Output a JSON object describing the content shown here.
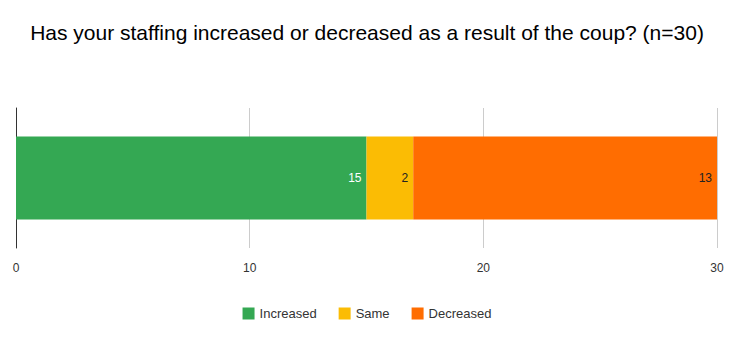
{
  "chart_data": {
    "type": "bar",
    "title": "Has your staffing increased or decreased as a result of the coup? (n=30)",
    "orientation": "horizontal",
    "stacked": true,
    "data_labels": true,
    "grid": true,
    "legend": "bottom",
    "categories": [
      null
    ],
    "series": [
      {
        "name": "Increased",
        "color": "#34a853",
        "values": [
          15
        ]
      },
      {
        "name": "Same",
        "color": "#fbbc04",
        "values": [
          2
        ]
      },
      {
        "name": "Decreased",
        "color": "#ff6d01",
        "values": [
          13
        ]
      }
    ],
    "xlim": [
      0,
      30
    ],
    "xticks": [
      0,
      10,
      20,
      30
    ]
  }
}
